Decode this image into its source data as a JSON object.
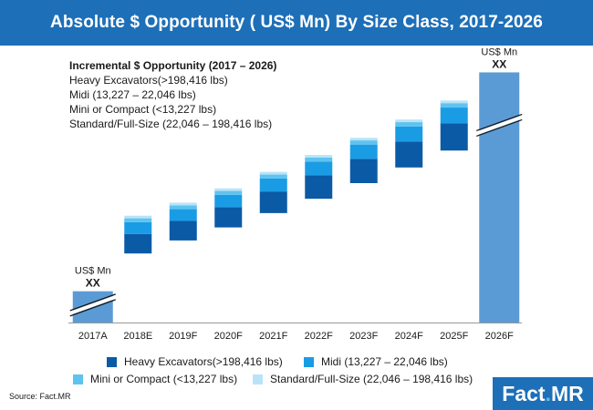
{
  "header": {
    "title": "Absolute $ Opportunity ( US$ Mn) By Size Class, 2017-2026"
  },
  "note": {
    "heading": "Incremental $ Opportunity (2017 – 2026)",
    "lines": [
      "Heavy Excavators(>198,416 lbs)",
      "Midi (13,227 – 22,046 lbs)",
      "Mini or Compact (<13,227 lbs)",
      "Standard/Full-Size (22,046 – 198,416 lbs)"
    ]
  },
  "chart_data": {
    "type": "bar",
    "subtype": "waterfall",
    "categories": [
      "2017A",
      "2018E",
      "2019F",
      "2020F",
      "2021F",
      "2022F",
      "2023F",
      "2024F",
      "2025F",
      "2026F"
    ],
    "endpoint_bars": [
      {
        "category": "2017A",
        "unit_label": "US$ Mn",
        "value_label": "XX",
        "height_fraction": 0.12
      },
      {
        "category": "2026F",
        "unit_label": "US$ Mn",
        "value_label": "XX",
        "height_fraction": 0.96
      }
    ],
    "floating_stacks": [
      {
        "category": "2018E",
        "base": 0.265,
        "heavy": 0.075,
        "midi": 0.045,
        "mini": 0.015,
        "standard": 0.01
      },
      {
        "category": "2019F",
        "base": 0.315,
        "heavy": 0.075,
        "midi": 0.045,
        "mini": 0.015,
        "standard": 0.01
      },
      {
        "category": "2020F",
        "base": 0.365,
        "heavy": 0.078,
        "midi": 0.047,
        "mini": 0.015,
        "standard": 0.01
      },
      {
        "category": "2021F",
        "base": 0.42,
        "heavy": 0.083,
        "midi": 0.05,
        "mini": 0.015,
        "standard": 0.01
      },
      {
        "category": "2022F",
        "base": 0.475,
        "heavy": 0.09,
        "midi": 0.052,
        "mini": 0.016,
        "standard": 0.01
      },
      {
        "category": "2023F",
        "base": 0.535,
        "heavy": 0.093,
        "midi": 0.055,
        "mini": 0.016,
        "standard": 0.01
      },
      {
        "category": "2024F",
        "base": 0.595,
        "heavy": 0.1,
        "midi": 0.057,
        "mini": 0.017,
        "standard": 0.01
      },
      {
        "category": "2025F",
        "base": 0.66,
        "heavy": 0.105,
        "midi": 0.06,
        "mini": 0.017,
        "standard": 0.01
      }
    ],
    "series": [
      {
        "key": "heavy",
        "name": "Heavy Excavators(>198,416 lbs)",
        "color": "#0b5aa6"
      },
      {
        "key": "midi",
        "name": "Midi (13,227 – 22,046 lbs)",
        "color": "#1a9ce5"
      },
      {
        "key": "mini",
        "name": "Mini or Compact (<13,227 lbs)",
        "color": "#5fc3ef"
      },
      {
        "key": "standard",
        "name": "Standard/Full-Size (22,046 – 198,416 lbs)",
        "color": "#b9e4f8"
      }
    ],
    "endpoint_color": "#5b9bd5",
    "axis_color": "#999999",
    "legend_position": "bottom"
  },
  "footer": {
    "source": "Source: Fact.MR",
    "logo_main": "Fact",
    "logo_dot": ".",
    "logo_end": "MR"
  },
  "colors": {
    "brand": "#1d6fb8"
  }
}
